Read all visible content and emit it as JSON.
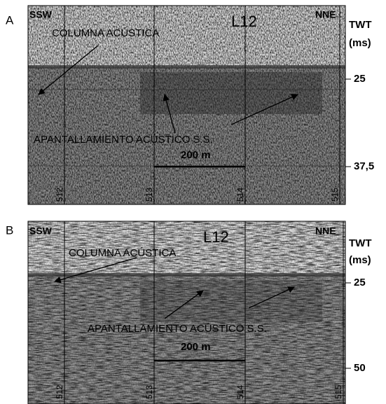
{
  "panels": [
    {
      "label": "A",
      "left": "SSW",
      "right": "NNE",
      "line": "L12",
      "axis_title": "TWT",
      "axis_unit": "(ms)",
      "ticks": [
        "25",
        "37,5"
      ],
      "annotations": [
        "COLUMNA  ACÚSTICA",
        "APANTALLAMIENTO ACÚSTICO S.S."
      ],
      "scale": "200 m",
      "fixes": [
        "512",
        "513",
        "514",
        "515"
      ]
    },
    {
      "label": "B",
      "left": "SSW",
      "right": "NNE",
      "line": "L12",
      "axis_title": "TWT",
      "axis_unit": "(ms)",
      "ticks": [
        "25",
        "50"
      ],
      "annotations": [
        "COLUMNA  ACÚSTICA",
        "APANTALLAMIENTO ACÚSTICO S.S."
      ],
      "scale": "200 m",
      "fixes": [
        "512",
        "513",
        "514",
        "515"
      ]
    }
  ]
}
